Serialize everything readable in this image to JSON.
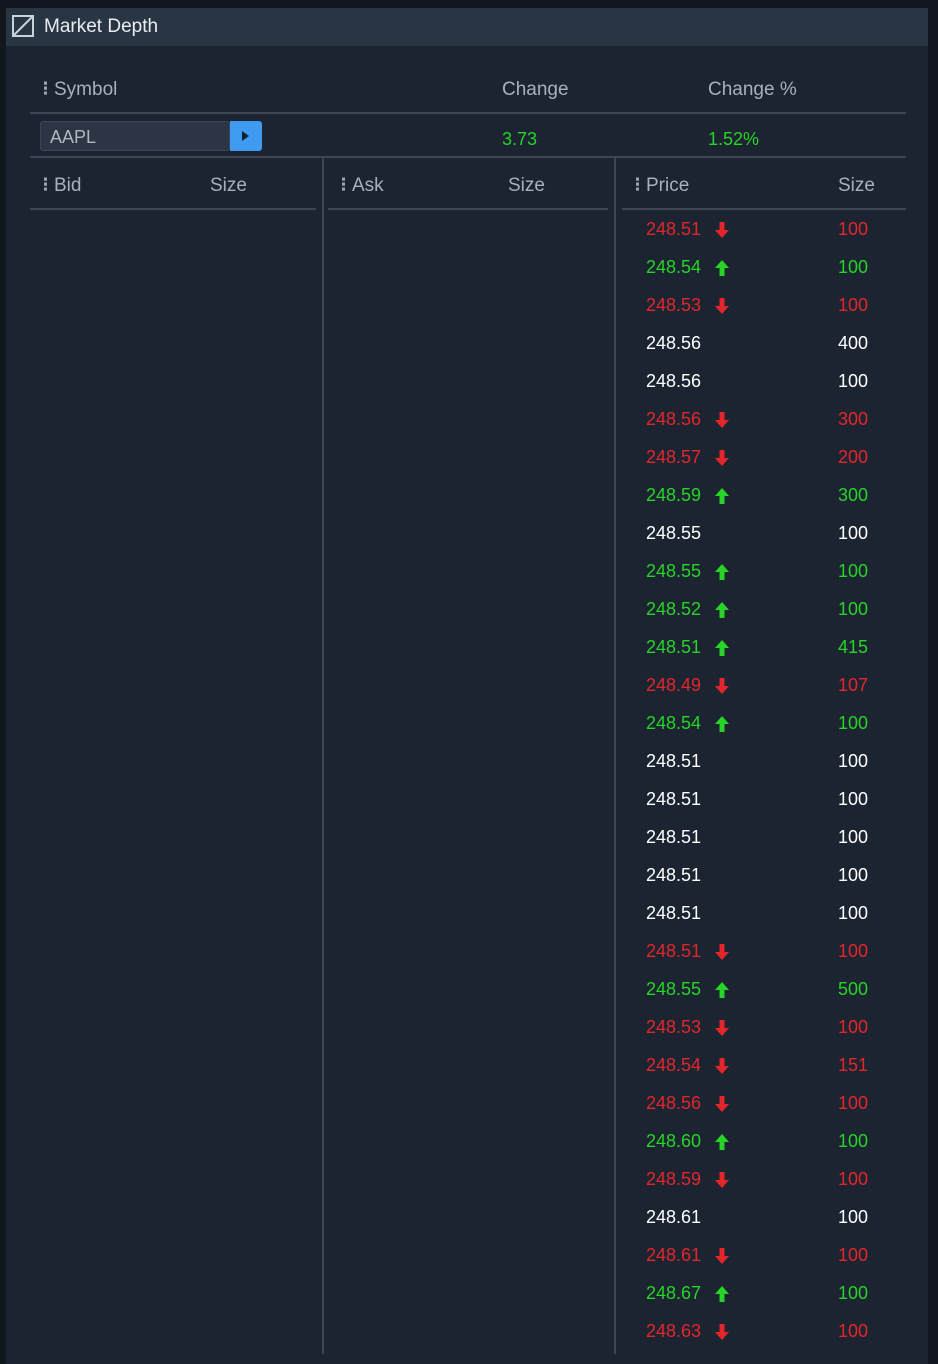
{
  "window": {
    "title": "Market Depth"
  },
  "quote": {
    "headers": {
      "symbol": "Symbol",
      "change": "Change",
      "change_pct": "Change %"
    },
    "symbol": "AAPL",
    "change": "3.73",
    "change_pct": "1.52%"
  },
  "bid_panel": {
    "col1": "Bid",
    "col2": "Size"
  },
  "ask_panel": {
    "col1": "Ask",
    "col2": "Size"
  },
  "trades_panel": {
    "col1": "Price",
    "col2": "Size"
  },
  "colors": {
    "up": "#27d427",
    "down": "#e2262b",
    "neutral": "#ffffff",
    "accent": "#3f9bf0"
  },
  "trades": [
    {
      "price": "248.51",
      "size": "100",
      "dir": "down"
    },
    {
      "price": "248.54",
      "size": "100",
      "dir": "up"
    },
    {
      "price": "248.53",
      "size": "100",
      "dir": "down"
    },
    {
      "price": "248.56",
      "size": "400",
      "dir": "none"
    },
    {
      "price": "248.56",
      "size": "100",
      "dir": "none"
    },
    {
      "price": "248.56",
      "size": "300",
      "dir": "down"
    },
    {
      "price": "248.57",
      "size": "200",
      "dir": "down"
    },
    {
      "price": "248.59",
      "size": "300",
      "dir": "up"
    },
    {
      "price": "248.55",
      "size": "100",
      "dir": "none"
    },
    {
      "price": "248.55",
      "size": "100",
      "dir": "up"
    },
    {
      "price": "248.52",
      "size": "100",
      "dir": "up"
    },
    {
      "price": "248.51",
      "size": "415",
      "dir": "up"
    },
    {
      "price": "248.49",
      "size": "107",
      "dir": "down"
    },
    {
      "price": "248.54",
      "size": "100",
      "dir": "up"
    },
    {
      "price": "248.51",
      "size": "100",
      "dir": "none"
    },
    {
      "price": "248.51",
      "size": "100",
      "dir": "none"
    },
    {
      "price": "248.51",
      "size": "100",
      "dir": "none"
    },
    {
      "price": "248.51",
      "size": "100",
      "dir": "none"
    },
    {
      "price": "248.51",
      "size": "100",
      "dir": "none"
    },
    {
      "price": "248.51",
      "size": "100",
      "dir": "down"
    },
    {
      "price": "248.55",
      "size": "500",
      "dir": "up"
    },
    {
      "price": "248.53",
      "size": "100",
      "dir": "down"
    },
    {
      "price": "248.54",
      "size": "151",
      "dir": "down"
    },
    {
      "price": "248.56",
      "size": "100",
      "dir": "down"
    },
    {
      "price": "248.60",
      "size": "100",
      "dir": "up"
    },
    {
      "price": "248.59",
      "size": "100",
      "dir": "down"
    },
    {
      "price": "248.61",
      "size": "100",
      "dir": "none"
    },
    {
      "price": "248.61",
      "size": "100",
      "dir": "down"
    },
    {
      "price": "248.67",
      "size": "100",
      "dir": "up"
    },
    {
      "price": "248.63",
      "size": "100",
      "dir": "down"
    }
  ]
}
